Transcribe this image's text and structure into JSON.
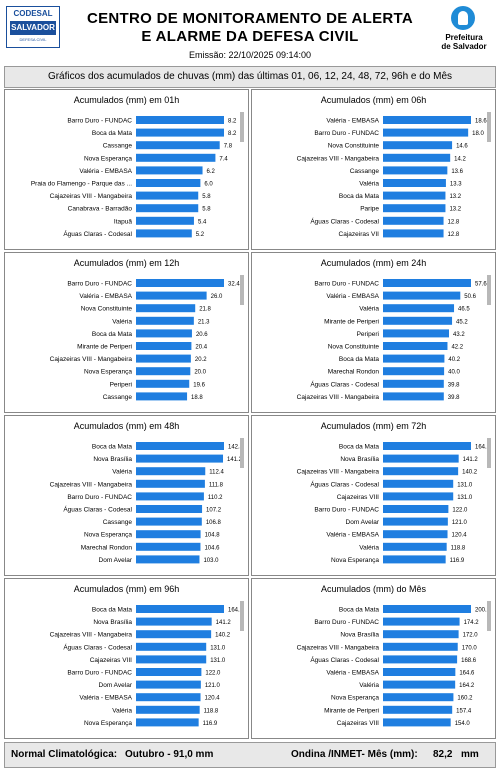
{
  "header": {
    "logo_left": {
      "line1": "CODESAL",
      "line2": "SALVADOR",
      "line3": "DEFESA CIVIL"
    },
    "title_line1": "CENTRO DE MONITORAMENTO DE ALERTA",
    "title_line2": "E ALARME DA DEFESA CIVIL",
    "emissao": "Emissão: 22/10/2025 09:14:00",
    "logo_right": {
      "line1": "Prefeitura",
      "line2": "de Salvador"
    }
  },
  "subtitle": "Gráficos dos acumulados de chuvas (mm) das últimas 01, 06, 12, 24, 48, 72, 96h e do Mês",
  "colors": {
    "bar": "#1f7ee0",
    "scrollbar": "#b8b8b8"
  },
  "chart_data": [
    {
      "type": "bar",
      "orientation": "horizontal",
      "title": "Acumulados (mm) em 01h",
      "categories": [
        "Barro Duro - FUNDAC",
        "Boca da Mata",
        "Cassange",
        "Nova Esperança",
        "Valéria - EMBASA",
        "Praia do Flamengo - Parque das ...",
        "Cajazeiras VIII - Mangabeira",
        "Canabrava - Barradão",
        "Itapuã",
        "Águas Claras - Codesal"
      ],
      "values": [
        8.2,
        8.2,
        7.8,
        7.4,
        6.2,
        6.0,
        5.8,
        5.8,
        5.4,
        5.2
      ],
      "value_labels": [
        "8.2",
        "8.2",
        "7.8",
        "7.4",
        "6.2",
        "6.0",
        "5.8",
        "5.8",
        "5.4",
        "5.2"
      ]
    },
    {
      "type": "bar",
      "orientation": "horizontal",
      "title": "Acumulados (mm) em 06h",
      "categories": [
        "Valéria - EMBASA",
        "Barro Duro - FUNDAC",
        "Nova Constituinte",
        "Cajazeiras VIII - Mangabeira",
        "Cassange",
        "Valéria",
        "Boca da Mata",
        "Paripe",
        "Águas Claras - Codesal",
        "Cajazeiras VII"
      ],
      "values": [
        18.6,
        18.0,
        14.6,
        14.2,
        13.6,
        13.3,
        13.2,
        13.2,
        12.8,
        12.8
      ],
      "value_labels": [
        "18.6",
        "18.0",
        "14.6",
        "14.2",
        "13.6",
        "13.3",
        "13.2",
        "13.2",
        "12.8",
        "12.8"
      ]
    },
    {
      "type": "bar",
      "orientation": "horizontal",
      "title": "Acumulados (mm) em 12h",
      "categories": [
        "Barro Duro - FUNDAC",
        "Valéria - EMBASA",
        "Nova Constituinte",
        "Valéria",
        "Boca da Mata",
        "Mirante de Periperi",
        "Cajazeiras VIII - Mangabeira",
        "Nova Esperança",
        "Periperi",
        "Cassange"
      ],
      "values": [
        32.4,
        26.0,
        21.8,
        21.3,
        20.6,
        20.4,
        20.2,
        20.0,
        19.6,
        18.8
      ],
      "value_labels": [
        "32.4",
        "26.0",
        "21.8",
        "21.3",
        "20.6",
        "20.4",
        "20.2",
        "20.0",
        "19.6",
        "18.8"
      ]
    },
    {
      "type": "bar",
      "orientation": "horizontal",
      "title": "Acumulados (mm) em 24h",
      "categories": [
        "Barro Duro - FUNDAC",
        "Valéria - EMBASA",
        "Valéria",
        "Mirante de Periperi",
        "Periperi",
        "Nova Constituinte",
        "Boca da Mata",
        "Marechal Rondon",
        "Águas Claras - Codesal",
        "Cajazeiras VIII - Mangabeira"
      ],
      "values": [
        57.6,
        50.6,
        46.5,
        45.2,
        43.2,
        42.2,
        40.2,
        40.0,
        39.8,
        39.8
      ],
      "value_labels": [
        "57.6",
        "50.6",
        "46.5",
        "45.2",
        "43.2",
        "42.2",
        "40.2",
        "40.0",
        "39.8",
        "39.8"
      ]
    },
    {
      "type": "bar",
      "orientation": "horizontal",
      "title": "Acumulados (mm) em 48h",
      "categories": [
        "Boca da Mata",
        "Nova Brasília",
        "Valéria",
        "Cajazeiras VIII - Mangabeira",
        "Barro Duro - FUNDAC",
        "Águas Claras - Codesal",
        "Cassange",
        "Nova Esperança",
        "Marechal Rondon",
        "Dom Avelar"
      ],
      "values": [
        142.8,
        141.2,
        112.4,
        111.8,
        110.2,
        107.2,
        106.8,
        104.8,
        104.6,
        103.0
      ],
      "value_labels": [
        "142.8",
        "141.2",
        "112.4",
        "111.8",
        "110.2",
        "107.2",
        "106.8",
        "104.8",
        "104.6",
        "103.0"
      ]
    },
    {
      "type": "bar",
      "orientation": "horizontal",
      "title": "Acumulados (mm) em 72h",
      "categories": [
        "Boca da Mata",
        "Nova Brasília",
        "Cajazeiras VIII - Mangabeira",
        "Águas Claras - Codesal",
        "Cajazeiras VIII",
        "Barro Duro - FUNDAC",
        "Dom Avelar",
        "Valéria - EMBASA",
        "Valéria",
        "Nova Esperança"
      ],
      "values": [
        164.2,
        141.2,
        140.2,
        131.0,
        131.0,
        122.0,
        121.0,
        120.4,
        118.8,
        116.9
      ],
      "value_labels": [
        "164.2",
        "141.2",
        "140.2",
        "131.0",
        "131.0",
        "122.0",
        "121.0",
        "120.4",
        "118.8",
        "116.9"
      ]
    },
    {
      "type": "bar",
      "orientation": "horizontal",
      "title": "Acumulados (mm) em 96h",
      "categories": [
        "Boca da Mata",
        "Nova Brasília",
        "Cajazeiras VIII - Mangabeira",
        "Águas Claras - Codesal",
        "Cajazeiras VIII",
        "Barro Duro - FUNDAC",
        "Dom Avelar",
        "Valéria - EMBASA",
        "Valéria",
        "Nova Esperança"
      ],
      "values": [
        164.2,
        141.2,
        140.2,
        131.0,
        131.0,
        122.0,
        121.0,
        120.4,
        118.8,
        116.9
      ],
      "value_labels": [
        "164.2",
        "141.2",
        "140.2",
        "131.0",
        "131.0",
        "122.0",
        "121.0",
        "120.4",
        "118.8",
        "116.9"
      ]
    },
    {
      "type": "bar",
      "orientation": "horizontal",
      "title": "Acumulados (mm) do Mês",
      "categories": [
        "Boca da Mata",
        "Barro Duro - FUNDAC",
        "Nova Brasília",
        "Cajazeiras VIII - Mangabeira",
        "Águas Claras - Codesal",
        "Valéria - EMBASA",
        "Valéria",
        "Nova Esperança",
        "Mirante de Periperi",
        "Cajazeiras VIII"
      ],
      "values": [
        200.2,
        174.2,
        172.0,
        170.0,
        168.6,
        164.6,
        164.2,
        160.2,
        157.4,
        154.0
      ],
      "value_labels": [
        "200.2",
        "174.2",
        "172.0",
        "170.0",
        "168.6",
        "164.6",
        "164.2",
        "160.2",
        "157.4",
        "154.0"
      ]
    }
  ],
  "footer": {
    "normal_label": "Normal Climatológica:",
    "normal_value": "Outubro - 91,0 mm",
    "ondina_label": "Ondina /INMET- Mês (mm):",
    "ondina_value": "82,2",
    "ondina_unit": "mm"
  }
}
